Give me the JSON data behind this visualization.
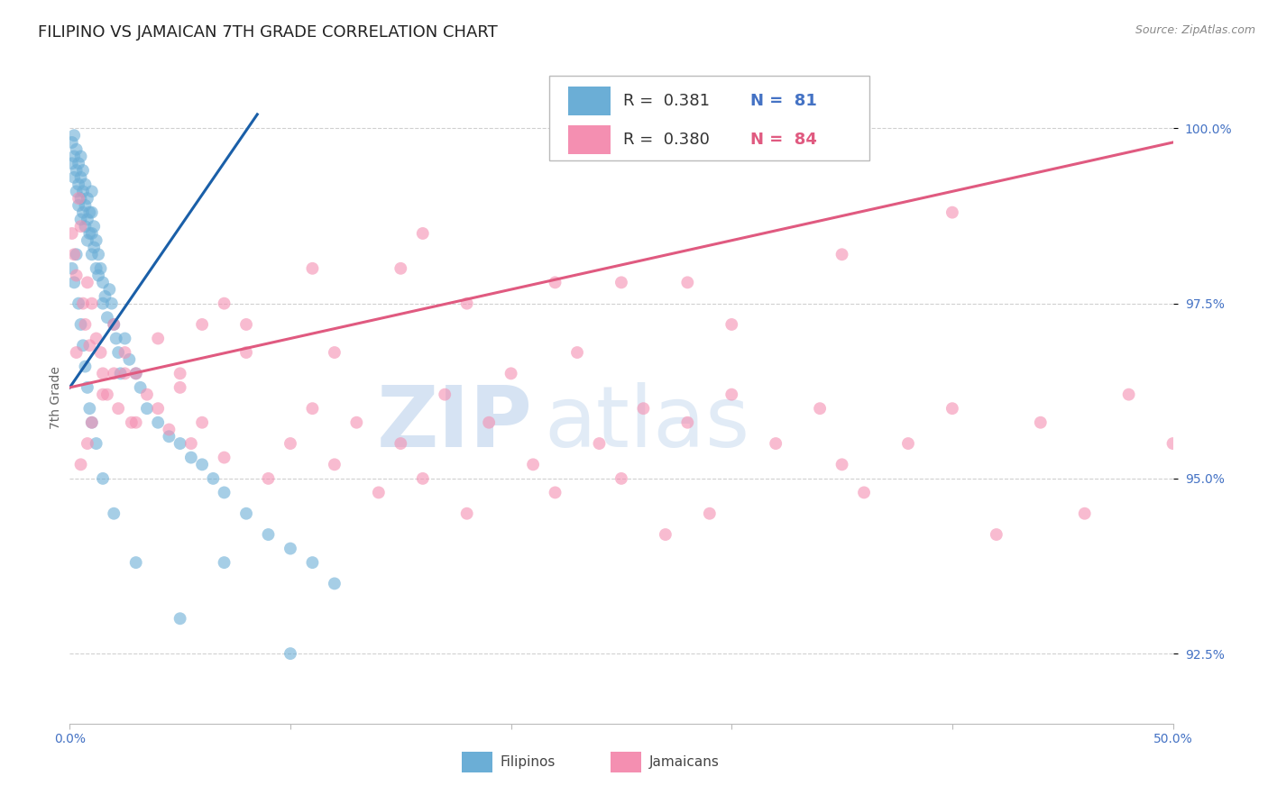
{
  "title": "FILIPINO VS JAMAICAN 7TH GRADE CORRELATION CHART",
  "source": "Source: ZipAtlas.com",
  "ylabel": "7th Grade",
  "xmin": 0.0,
  "xmax": 50.0,
  "ymin": 91.5,
  "ymax": 100.8,
  "yticks": [
    92.5,
    95.0,
    97.5,
    100.0
  ],
  "ytick_labels": [
    "92.5%",
    "95.0%",
    "97.5%",
    "100.0%"
  ],
  "xticks": [
    0.0,
    10.0,
    20.0,
    30.0,
    40.0,
    50.0
  ],
  "blue_R": 0.381,
  "blue_N": 81,
  "pink_R": 0.38,
  "pink_N": 84,
  "blue_color": "#6baed6",
  "pink_color": "#f48fb1",
  "blue_line_color": "#1a5fa8",
  "pink_line_color": "#e05a80",
  "legend_label_blue": "Filipinos",
  "legend_label_pink": "Jamaicans",
  "blue_dots_x": [
    0.1,
    0.1,
    0.2,
    0.2,
    0.2,
    0.3,
    0.3,
    0.3,
    0.4,
    0.4,
    0.4,
    0.5,
    0.5,
    0.5,
    0.5,
    0.6,
    0.6,
    0.6,
    0.7,
    0.7,
    0.7,
    0.8,
    0.8,
    0.8,
    0.9,
    0.9,
    1.0,
    1.0,
    1.0,
    1.0,
    1.1,
    1.1,
    1.2,
    1.2,
    1.3,
    1.3,
    1.4,
    1.5,
    1.5,
    1.6,
    1.7,
    1.8,
    1.9,
    2.0,
    2.1,
    2.2,
    2.3,
    2.5,
    2.7,
    3.0,
    3.2,
    3.5,
    4.0,
    4.5,
    5.0,
    5.5,
    6.0,
    6.5,
    7.0,
    8.0,
    9.0,
    10.0,
    11.0,
    12.0,
    0.1,
    0.2,
    0.3,
    0.4,
    0.5,
    0.6,
    0.7,
    0.8,
    0.9,
    1.0,
    1.2,
    1.5,
    2.0,
    3.0,
    5.0,
    7.0,
    10.0
  ],
  "blue_dots_y": [
    99.8,
    99.5,
    99.9,
    99.6,
    99.3,
    99.7,
    99.4,
    99.1,
    99.5,
    99.2,
    98.9,
    99.6,
    99.3,
    99.0,
    98.7,
    99.4,
    99.1,
    98.8,
    99.2,
    98.9,
    98.6,
    99.0,
    98.7,
    98.4,
    98.8,
    98.5,
    99.1,
    98.8,
    98.5,
    98.2,
    98.6,
    98.3,
    98.4,
    98.0,
    98.2,
    97.9,
    98.0,
    97.8,
    97.5,
    97.6,
    97.3,
    97.7,
    97.5,
    97.2,
    97.0,
    96.8,
    96.5,
    97.0,
    96.7,
    96.5,
    96.3,
    96.0,
    95.8,
    95.6,
    95.5,
    95.3,
    95.2,
    95.0,
    94.8,
    94.5,
    94.2,
    94.0,
    93.8,
    93.5,
    98.0,
    97.8,
    98.2,
    97.5,
    97.2,
    96.9,
    96.6,
    96.3,
    96.0,
    95.8,
    95.5,
    95.0,
    94.5,
    93.8,
    93.0,
    93.8,
    92.5
  ],
  "pink_dots_x": [
    0.1,
    0.2,
    0.3,
    0.4,
    0.5,
    0.6,
    0.7,
    0.8,
    0.9,
    1.0,
    1.2,
    1.4,
    1.5,
    1.7,
    2.0,
    2.2,
    2.5,
    2.8,
    3.0,
    3.5,
    4.0,
    4.5,
    5.0,
    5.5,
    6.0,
    7.0,
    8.0,
    9.0,
    10.0,
    11.0,
    12.0,
    13.0,
    14.0,
    15.0,
    16.0,
    17.0,
    18.0,
    19.0,
    20.0,
    21.0,
    22.0,
    23.0,
    24.0,
    25.0,
    26.0,
    27.0,
    28.0,
    29.0,
    30.0,
    32.0,
    34.0,
    35.0,
    36.0,
    38.0,
    40.0,
    42.0,
    44.0,
    46.0,
    48.0,
    50.0,
    0.3,
    0.8,
    1.5,
    3.0,
    5.0,
    8.0,
    12.0,
    18.0,
    25.0,
    35.0,
    0.5,
    1.0,
    2.0,
    4.0,
    7.0,
    11.0,
    16.0,
    22.0,
    30.0,
    40.0,
    2.5,
    6.0,
    15.0,
    28.0
  ],
  "pink_dots_y": [
    98.5,
    98.2,
    97.9,
    99.0,
    98.6,
    97.5,
    97.2,
    97.8,
    96.9,
    97.5,
    97.0,
    96.8,
    96.5,
    96.2,
    97.2,
    96.0,
    96.8,
    95.8,
    96.5,
    96.2,
    96.0,
    95.7,
    96.3,
    95.5,
    95.8,
    95.3,
    96.8,
    95.0,
    95.5,
    96.0,
    95.2,
    95.8,
    94.8,
    95.5,
    95.0,
    96.2,
    94.5,
    95.8,
    96.5,
    95.2,
    94.8,
    96.8,
    95.5,
    95.0,
    96.0,
    94.2,
    95.8,
    94.5,
    96.2,
    95.5,
    96.0,
    95.2,
    94.8,
    95.5,
    96.0,
    94.2,
    95.8,
    94.5,
    96.2,
    95.5,
    96.8,
    95.5,
    96.2,
    95.8,
    96.5,
    97.2,
    96.8,
    97.5,
    97.8,
    98.2,
    95.2,
    95.8,
    96.5,
    97.0,
    97.5,
    98.0,
    98.5,
    97.8,
    97.2,
    98.8,
    96.5,
    97.2,
    98.0,
    97.8
  ],
  "blue_line": {
    "x0": 0.0,
    "y0": 96.3,
    "x1": 8.5,
    "y1": 100.2
  },
  "pink_line": {
    "x0": 0.0,
    "y0": 96.3,
    "x1": 50.0,
    "y1": 99.8
  },
  "watermark_zip": "ZIP",
  "watermark_atlas": "atlas",
  "background_color": "#ffffff",
  "grid_color": "#d0d0d0",
  "title_fontsize": 13,
  "axis_label_fontsize": 10,
  "tick_fontsize": 10,
  "source_fontsize": 9
}
